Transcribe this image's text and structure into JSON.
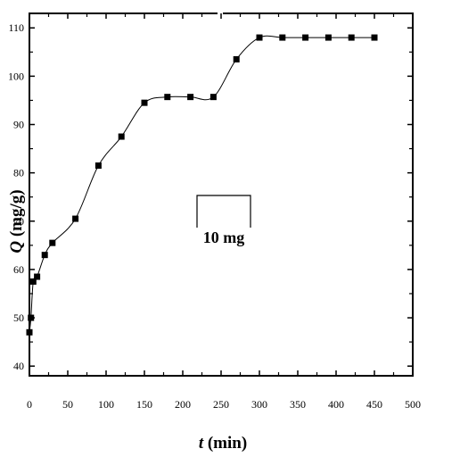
{
  "chart_data": {
    "type": "scatter",
    "xlabel": {
      "var": "t",
      "unit": "(min)"
    },
    "ylabel": {
      "var": "Q",
      "unit": "(mg/g)"
    },
    "xlim": [
      0,
      500
    ],
    "ylim": [
      38,
      113
    ],
    "x_ticks": [
      0,
      50,
      100,
      150,
      200,
      250,
      300,
      350,
      400,
      450,
      500
    ],
    "y_ticks": [
      40,
      50,
      60,
      70,
      80,
      90,
      100,
      110
    ],
    "legend": {
      "label": "10 mg"
    },
    "series": [
      {
        "marker": "square",
        "line": "smooth",
        "color": "#000000",
        "x": [
          0,
          2,
          5,
          10,
          20,
          30,
          60,
          90,
          120,
          150,
          180,
          210,
          240,
          270,
          300,
          330,
          360,
          390,
          420,
          450
        ],
        "y": [
          47,
          50,
          57.5,
          58.5,
          63,
          65.5,
          70.5,
          81.5,
          87.5,
          94.5,
          95.7,
          95.7,
          95.7,
          103.5,
          108,
          108,
          108,
          108,
          108,
          108
        ]
      }
    ],
    "grid": false
  }
}
